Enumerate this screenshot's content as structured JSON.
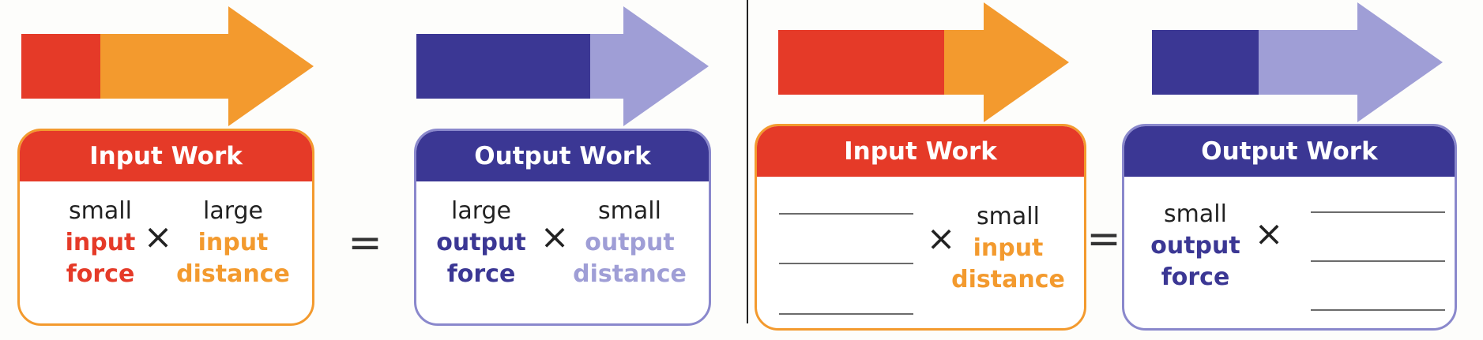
{
  "colors": {
    "input_force": "#e53a28",
    "input_distance": "#f39a2e",
    "output_force": "#3b3794",
    "output_distance": "#9f9ed6"
  },
  "operators": {
    "times": "×",
    "equals": "="
  },
  "left_example": {
    "input": {
      "title": "Input Work",
      "force": {
        "size": "small",
        "line1": "input",
        "line2": "force"
      },
      "distance": {
        "size": "large",
        "line1": "input",
        "line2": "distance"
      }
    },
    "output": {
      "title": "Output Work",
      "force": {
        "size": "large",
        "line1": "output",
        "line2": "force"
      },
      "distance": {
        "size": "small",
        "line1": "output",
        "line2": "distance"
      }
    }
  },
  "right_exercise": {
    "input": {
      "title": "Input Work",
      "blank_count": 3,
      "distance": {
        "size": "small",
        "line1": "input",
        "line2": "distance"
      }
    },
    "output": {
      "title": "Output Work",
      "force": {
        "size": "small",
        "line1": "output",
        "line2": "force"
      },
      "blank_count": 3
    }
  }
}
